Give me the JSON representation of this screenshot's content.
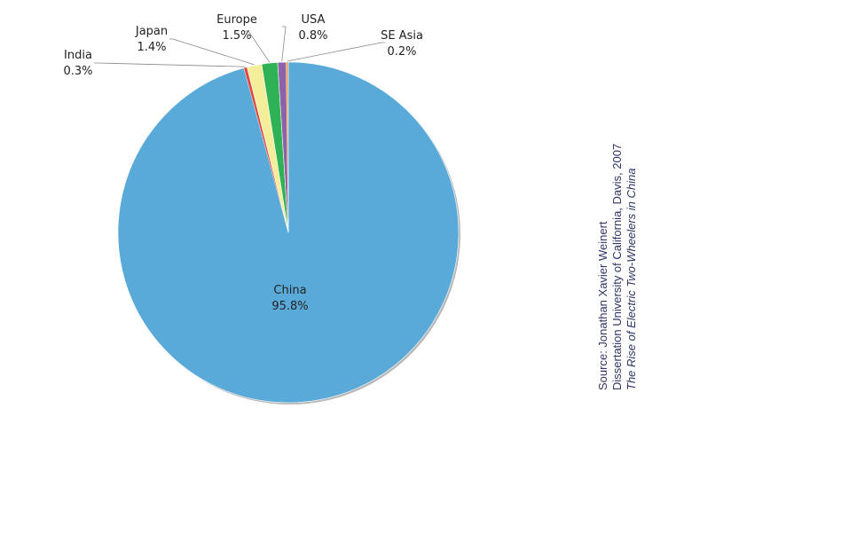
{
  "chart_data": {
    "type": "pie",
    "title": "",
    "slices": [
      {
        "label": "China",
        "value": 95.8,
        "display": "95.8%",
        "color": "#5aaad9"
      },
      {
        "label": "India",
        "value": 0.3,
        "display": "0.3%",
        "color": "#e0463c"
      },
      {
        "label": "Japan",
        "value": 1.4,
        "display": "1.4%",
        "color": "#f4ee9a"
      },
      {
        "label": "Europe",
        "value": 1.5,
        "display": "1.5%",
        "color": "#2fb256"
      },
      {
        "label": "USA",
        "value": 0.8,
        "display": "0.8%",
        "color": "#8c62a8"
      },
      {
        "label": "SE Asia",
        "value": 0.2,
        "display": "0.2%",
        "color": "#f0a95c"
      }
    ],
    "label_placement": "outside with leader lines; largest slice labeled inside"
  },
  "source": {
    "line1": "Source: Jonathan Xavier Weinert",
    "line2": "Dissertation University of California, Davis, 2007",
    "line3": "The Rise of Electric Two-Wheelers in China"
  }
}
